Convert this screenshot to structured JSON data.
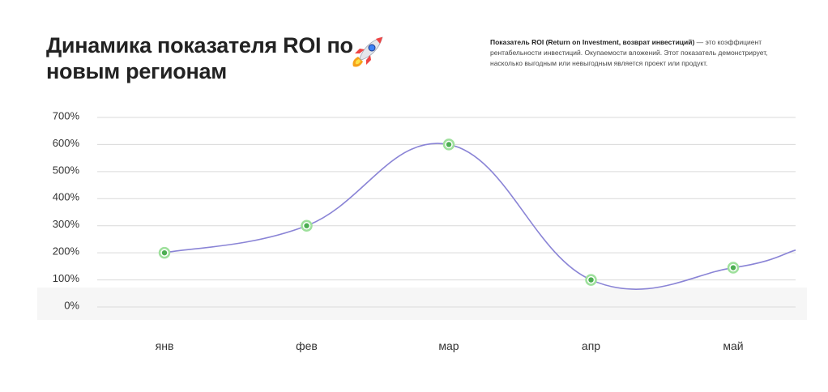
{
  "title": "Динамика показателя ROI по новым регионам",
  "description": {
    "bold": "Показатель ROI (Return on Investment, возврат инвестиций)",
    "text": " — это коэффициент рентабельности инвестиций. Окупаемости вложений. Этот показатель демонстрирует, насколько выгодным или невыгодным является проект или продукт."
  },
  "icons": {
    "title_icon": "rocket-icon"
  },
  "colors": {
    "line": "#8a84d6",
    "marker_fill": "#9ee09c",
    "marker_stroke": "#4cae52",
    "grid": "#d9d9d9"
  },
  "chart_data": {
    "type": "line",
    "categories": [
      "янв",
      "фев",
      "мар",
      "апр",
      "май"
    ],
    "values": [
      200,
      300,
      600,
      100,
      145
    ],
    "y_ticks": [
      "0%",
      "100%",
      "200%",
      "300%",
      "400%",
      "500%",
      "600%",
      "700%"
    ],
    "ylim": [
      0,
      700
    ],
    "y_unit": "%",
    "grid": true,
    "legend": "none"
  }
}
